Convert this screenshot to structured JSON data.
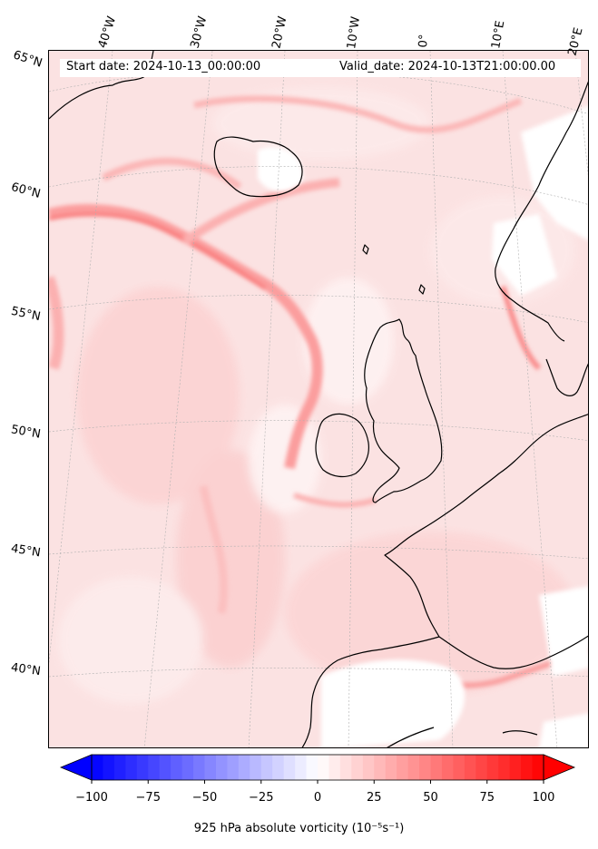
{
  "header": {
    "start_label": "Start date: 2024-10-13_00:00:00",
    "valid_label": "Valid_date: 2024-10-13T21:00:00.00"
  },
  "longitude_labels": [
    "40°W",
    "30°W",
    "20°W",
    "10°W",
    "0°",
    "10°E",
    "20°E"
  ],
  "latitude_labels": [
    "65°N",
    "60°N",
    "55°N",
    "50°N",
    "45°N",
    "40°N"
  ],
  "colorbar": {
    "ticks": [
      "−100",
      "−75",
      "−50",
      "−25",
      "0",
      "25",
      "50",
      "75",
      "100"
    ],
    "range": [
      -100,
      100
    ],
    "title": "925 hPa absolute vorticity (10⁻⁵s⁻¹)",
    "colors": {
      "min": "#0000ff",
      "mid": "#ffffff",
      "max": "#ff0000"
    },
    "extend": "both"
  },
  "map": {
    "field": "925 hPa absolute vorticity",
    "background_color": "#fbe3e3",
    "coastline_color": "#000000",
    "gridlines": "dotted grey"
  }
}
